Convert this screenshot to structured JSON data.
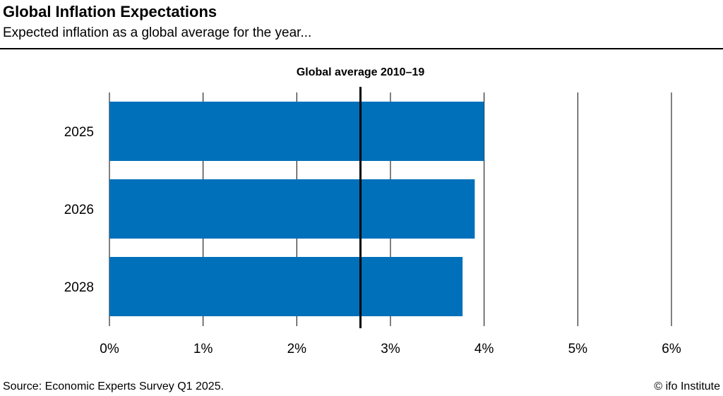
{
  "header": {
    "title": "Global Inflation Expectations",
    "subtitle": "Expected inflation as a global average for the year..."
  },
  "chart_data": {
    "type": "bar",
    "orientation": "horizontal",
    "categories": [
      "2025",
      "2026",
      "2028"
    ],
    "values": [
      4.0,
      3.9,
      3.77
    ],
    "value_unit": "%",
    "xlim": [
      0,
      6
    ],
    "x_ticks": [
      0,
      1,
      2,
      3,
      4,
      5,
      6
    ],
    "x_tick_labels": [
      "0%",
      "1%",
      "2%",
      "3%",
      "4%",
      "5%",
      "6%"
    ],
    "reference_line": {
      "label": "Global average 2010–19",
      "value": 2.68
    },
    "grid": true,
    "bar_color": "#0070BA"
  },
  "footer": {
    "source": "Source: Economic Experts Survey Q1 2025.",
    "credit": "© ifo Institute"
  }
}
